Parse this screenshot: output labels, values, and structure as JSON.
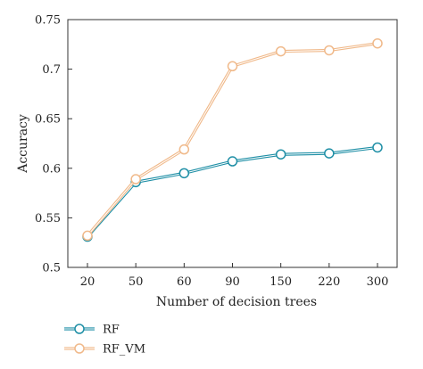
{
  "chart_data": {
    "type": "line",
    "categories": [
      "20",
      "50",
      "60",
      "90",
      "150",
      "220",
      "300"
    ],
    "series": [
      {
        "name": "RF",
        "color": "#1f8fa6",
        "values": [
          0.531,
          0.586,
          0.595,
          0.607,
          0.614,
          0.615,
          0.621
        ]
      },
      {
        "name": "RF_VM",
        "color": "#f0b98a",
        "values": [
          0.532,
          0.589,
          0.619,
          0.703,
          0.718,
          0.719,
          0.726
        ]
      }
    ],
    "xlabel": "Number of decision trees",
    "ylabel": "Accuracy",
    "ylim": [
      0.5,
      0.75
    ],
    "yticks": [
      0.5,
      0.55,
      0.6,
      0.65,
      0.7,
      0.75
    ],
    "ytick_labels": [
      "0.5",
      "0.55",
      "0.6",
      "0.65",
      "0.7",
      "0.75"
    ],
    "grid": false,
    "legend_position": "bottom-left"
  }
}
